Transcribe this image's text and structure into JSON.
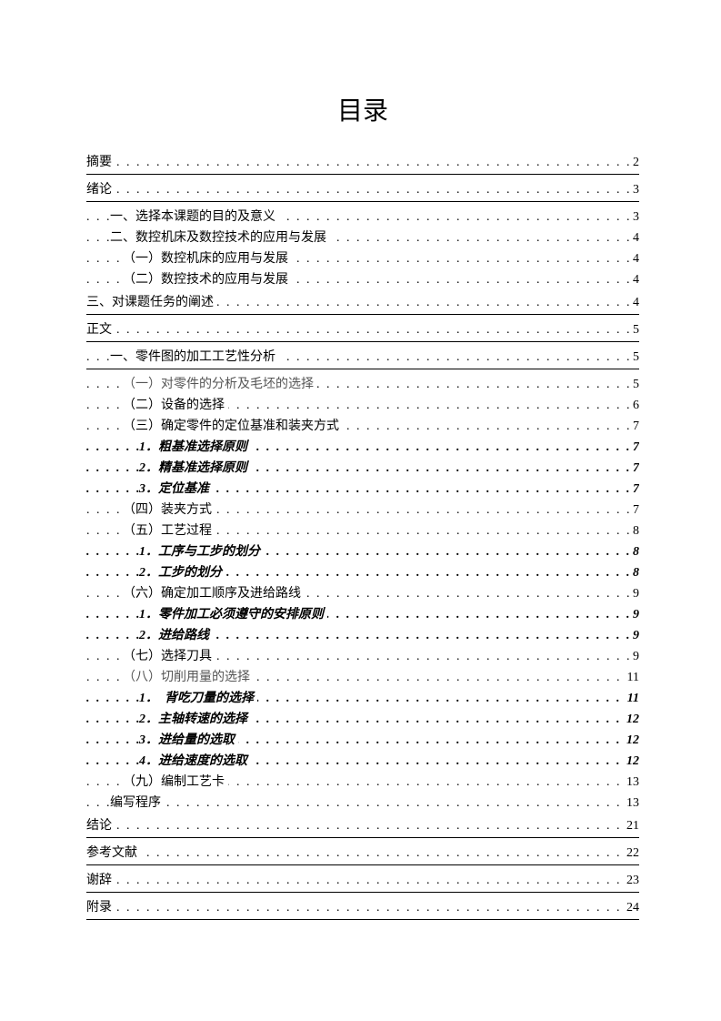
{
  "title": "目录",
  "leader_char": ". ",
  "entries": [
    {
      "label": "摘要",
      "page": "2",
      "indent": "indent0",
      "major": true
    },
    {
      "label": "绪论",
      "page": "3",
      "indent": "indent0",
      "major": true
    },
    {
      "label": "一、选择本课题的目的及意义",
      "page": "3",
      "indent": "indent1"
    },
    {
      "label": "二、数控机床及数控技术的应用与发展",
      "page": "4",
      "indent": "indent1"
    },
    {
      "label": "（一）数控机床的应用与发展",
      "page": "4",
      "indent": "indent2"
    },
    {
      "label": "（二）数控技术的应用与发展",
      "page": "4",
      "indent": "indent2"
    },
    {
      "label": "三、对课题任务的阐述",
      "page": "4",
      "indent": "indent0",
      "major": true
    },
    {
      "label": "正文",
      "page": "5",
      "indent": "indent0",
      "major": true
    },
    {
      "label": "一、零件图的加工工艺性分析",
      "page": "5",
      "indent": "indent1",
      "major": true
    },
    {
      "label": "（一）对零件的分析及毛坯的选择",
      "page": "5",
      "indent": "indent2",
      "faint": true
    },
    {
      "label": "（二）设备的选择",
      "page": "6",
      "indent": "indent2"
    },
    {
      "label": "（三）确定零件的定位基准和装夹方式",
      "page": "7",
      "indent": "indent2"
    },
    {
      "label": "1．粗基准选择原则",
      "page": "7",
      "indent": "indent3b",
      "italic": true
    },
    {
      "label": "2．精基准选择原则",
      "page": "7",
      "indent": "indent3b",
      "italic": true
    },
    {
      "label": "3．定位基准",
      "page": "7",
      "indent": "indent3b",
      "italic": true
    },
    {
      "label": "（四）装夹方式",
      "page": "7",
      "indent": "indent2"
    },
    {
      "label": "（五）工艺过程",
      "page": "8",
      "indent": "indent2"
    },
    {
      "label": "1．工序与工步的划分",
      "page": "8",
      "indent": "indent3b",
      "italic": true
    },
    {
      "label": "2．工步的划分",
      "page": "8",
      "indent": "indent3b",
      "italic": true
    },
    {
      "label": "（六）确定加工顺序及进给路线",
      "page": "9",
      "indent": "indent2"
    },
    {
      "label": "1．零件加工必须遵守的安排原则",
      "page": "9",
      "indent": "indent3b",
      "italic": true
    },
    {
      "label": "2．进给路线",
      "page": "9",
      "indent": "indent3b",
      "italic": true
    },
    {
      "label": "（七）选择刀具",
      "page": "9",
      "indent": "indent2"
    },
    {
      "label": "（八）切削用量的选择",
      "page": "11",
      "indent": "indent2",
      "faint": true
    },
    {
      "label": "1．　背吃刀量的选择",
      "page": "11",
      "indent": "indent3c",
      "italic": true
    },
    {
      "label": "2．主轴转速的选择",
      "page": "12",
      "indent": "indent3c",
      "italic": true
    },
    {
      "label": "3．进给量的选取",
      "page": "12",
      "indent": "indent3c",
      "italic": true
    },
    {
      "label": "4．进给速度的选取",
      "page": "12",
      "indent": "indent3c",
      "italic": true
    },
    {
      "label": "（九）编制工艺卡",
      "page": "13",
      "indent": "indent2"
    },
    {
      "label": "编写程序",
      "page": "13",
      "indent": "indent1"
    },
    {
      "label": "结论",
      "page": "21",
      "indent": "indent0",
      "major": true
    },
    {
      "label": "参考文献",
      "page": "22",
      "indent": "indent0",
      "major": true
    },
    {
      "label": "谢辞",
      "page": "23",
      "indent": "indent0",
      "major": true
    },
    {
      "label": "附录",
      "page": "24",
      "indent": "indent0",
      "major": true
    }
  ]
}
